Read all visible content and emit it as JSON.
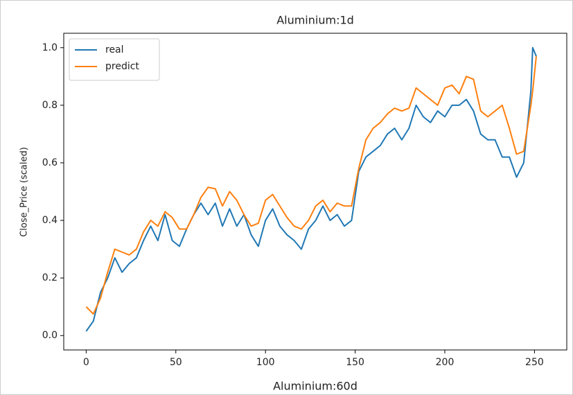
{
  "chart_data": {
    "type": "line",
    "title": "Aluminium:1d",
    "ylabel": "Close_Price (scaled)",
    "x": [
      0,
      4,
      8,
      12,
      16,
      20,
      24,
      28,
      32,
      36,
      40,
      44,
      48,
      52,
      56,
      60,
      64,
      68,
      72,
      76,
      80,
      84,
      88,
      92,
      96,
      100,
      104,
      108,
      112,
      116,
      120,
      124,
      128,
      132,
      136,
      140,
      144,
      148,
      152,
      156,
      160,
      164,
      168,
      172,
      176,
      180,
      184,
      188,
      192,
      196,
      200,
      204,
      208,
      212,
      216,
      220,
      224,
      228,
      232,
      236,
      240,
      244,
      248,
      249,
      251
    ],
    "series": [
      {
        "name": "real",
        "color": "#1f77b4",
        "values": [
          0.015,
          0.05,
          0.15,
          0.2,
          0.27,
          0.22,
          0.25,
          0.27,
          0.33,
          0.38,
          0.33,
          0.42,
          0.33,
          0.31,
          0.37,
          0.42,
          0.46,
          0.42,
          0.46,
          0.38,
          0.44,
          0.38,
          0.42,
          0.35,
          0.31,
          0.4,
          0.44,
          0.38,
          0.35,
          0.33,
          0.3,
          0.37,
          0.4,
          0.45,
          0.4,
          0.42,
          0.38,
          0.4,
          0.57,
          0.62,
          0.64,
          0.66,
          0.7,
          0.72,
          0.68,
          0.72,
          0.8,
          0.76,
          0.74,
          0.78,
          0.76,
          0.8,
          0.8,
          0.82,
          0.78,
          0.7,
          0.68,
          0.68,
          0.62,
          0.62,
          0.55,
          0.6,
          0.85,
          1.0,
          0.97
        ]
      },
      {
        "name": "predict",
        "color": "#ff7f0e",
        "values": [
          0.1,
          0.075,
          0.13,
          0.22,
          0.3,
          0.29,
          0.28,
          0.3,
          0.36,
          0.4,
          0.38,
          0.43,
          0.41,
          0.37,
          0.37,
          0.42,
          0.48,
          0.515,
          0.51,
          0.45,
          0.5,
          0.47,
          0.42,
          0.38,
          0.39,
          0.47,
          0.49,
          0.45,
          0.41,
          0.38,
          0.37,
          0.4,
          0.45,
          0.47,
          0.43,
          0.46,
          0.45,
          0.45,
          0.58,
          0.68,
          0.72,
          0.74,
          0.77,
          0.79,
          0.78,
          0.79,
          0.86,
          0.84,
          0.82,
          0.8,
          0.86,
          0.87,
          0.84,
          0.9,
          0.89,
          0.78,
          0.76,
          0.78,
          0.8,
          0.72,
          0.63,
          0.64,
          0.8,
          0.85,
          0.97
        ]
      }
    ],
    "xlim": [
      -12.5,
      268
    ],
    "ylim": [
      -0.05,
      1.05
    ],
    "xticks": [
      0,
      50,
      100,
      150,
      200,
      250
    ],
    "yticks": [
      {
        "value": 0,
        "label": "0.0"
      },
      {
        "value": 0.2,
        "label": "0.2"
      },
      {
        "value": 0.4,
        "label": "0.4"
      },
      {
        "value": 0.6,
        "label": "0.6"
      },
      {
        "value": 0.8,
        "label": "0.8"
      },
      {
        "value": 1,
        "label": "1.0"
      }
    ],
    "legend": "upper left"
  },
  "next_chart_title": "Aluminium:60d"
}
